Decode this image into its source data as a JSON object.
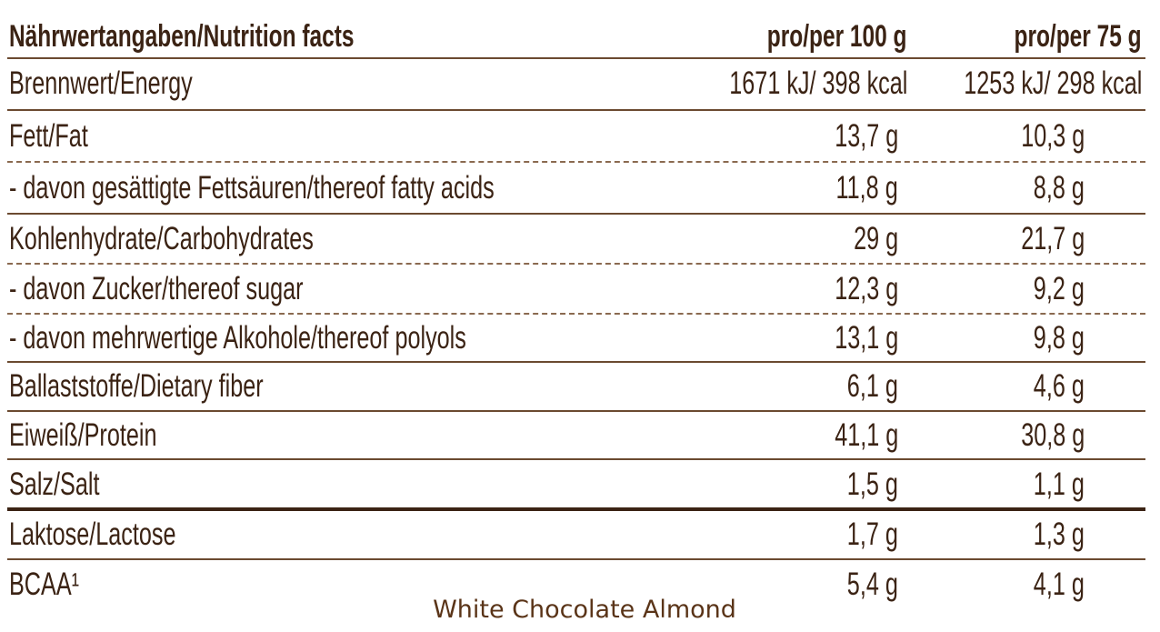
{
  "table": {
    "header": [
      "Nährwertangaben/Nutrition facts",
      "pro/per 100 g",
      "pro/per 75 g"
    ],
    "rows": [
      [
        "Brennwert/Energy",
        "1671 kJ/ 398 kcal",
        "1253 kJ/ 298 kcal"
      ],
      [
        "Fett/Fat",
        "13,7 g",
        "10,3 g"
      ],
      [
        "- davon gesättigte Fettsäuren/thereof fatty acids",
        "11,8 g",
        "8,8 g"
      ],
      [
        "Kohlenhydrate/Carbohydrates",
        "29 g",
        "21,7 g"
      ],
      [
        "- davon Zucker/thereof sugar",
        "12,3 g",
        "9,2 g"
      ],
      [
        "- davon mehrwertige Alkohole/thereof polyols",
        "13,1 g",
        "9,8 g"
      ],
      [
        "Ballaststoffe/Dietary fiber",
        "6,1 g",
        "4,6 g"
      ],
      [
        "Eiweiß/Protein",
        "41,1 g",
        "30,8 g"
      ],
      [
        "Salz/Salt",
        "1,5 g",
        "1,1 g"
      ],
      [
        "Laktose/Lactose",
        "1,7 g",
        "1,3 g"
      ],
      [
        "BCAA¹",
        "5,4 g",
        "4,1 g"
      ]
    ]
  },
  "caption": "White Chocolate Almond"
}
